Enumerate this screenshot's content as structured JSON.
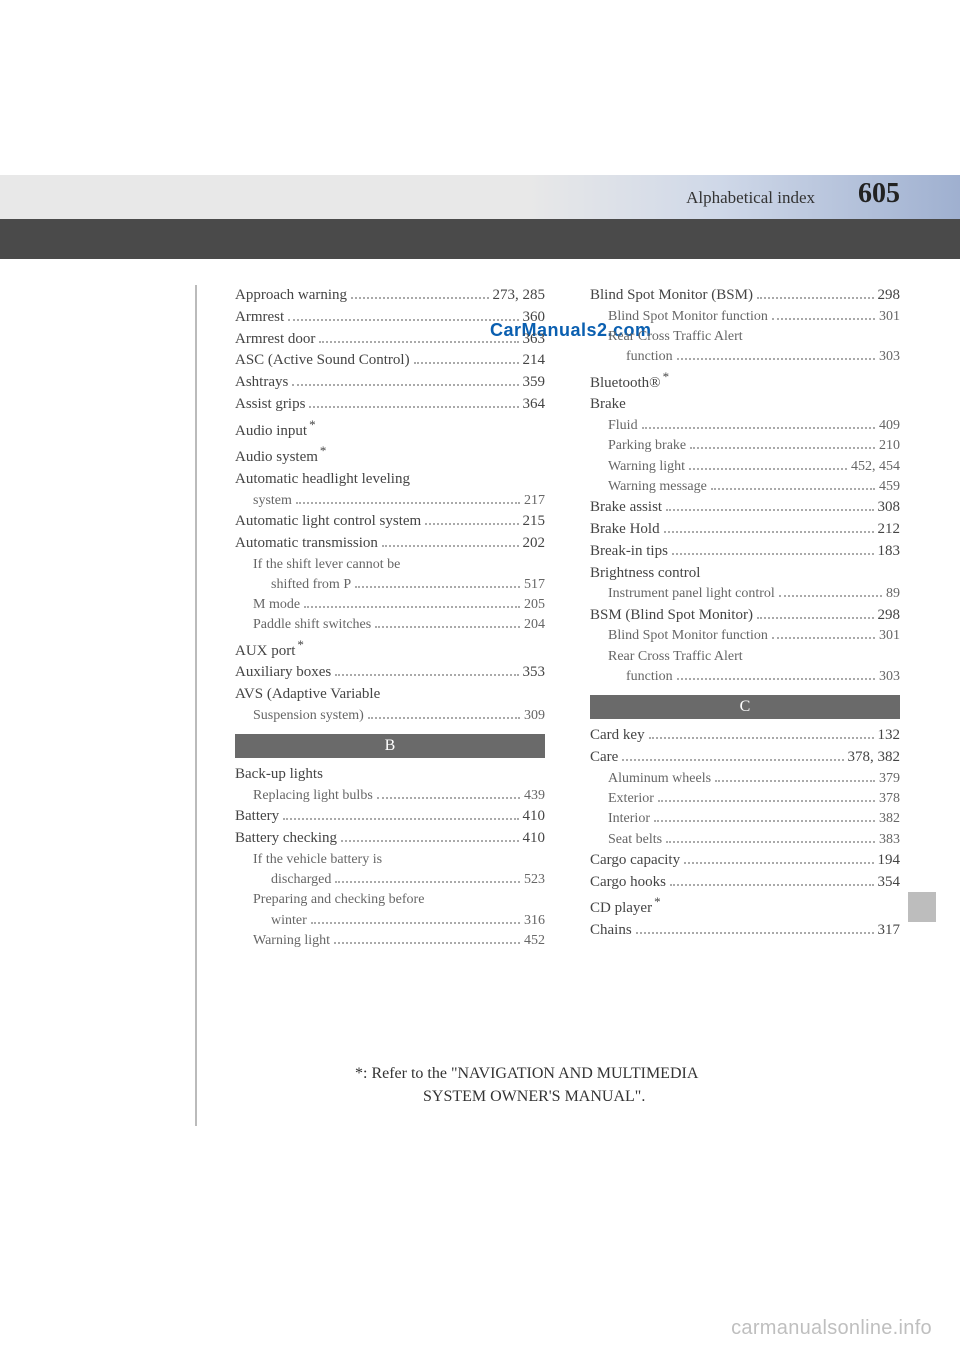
{
  "header": {
    "title": "Alphabetical index",
    "page_number": "605"
  },
  "watermark": "CarManuals2.com",
  "site_credit": "carmanualsonline.info",
  "footnote_line1": "*: Refer to the \"NAVIGATION AND MULTIMEDIA",
  "footnote_line2": "SYSTEM OWNER'S MANUAL\".",
  "col_left_a": [
    {
      "label": "Approach warning",
      "page": "273, 285",
      "level": 0
    },
    {
      "label": "Armrest",
      "page": "360",
      "level": 0
    },
    {
      "label": "Armrest door",
      "page": "363",
      "level": 0
    },
    {
      "label": "ASC (Active Sound Control)",
      "page": "214",
      "level": 0
    },
    {
      "label": "Ashtrays",
      "page": "359",
      "level": 0
    },
    {
      "label": "Assist grips",
      "page": "364",
      "level": 0
    },
    {
      "label": "Audio input",
      "page": "",
      "level": 0,
      "star": true,
      "nolead": true
    },
    {
      "label": "Audio system",
      "page": "",
      "level": 0,
      "star": true,
      "nolead": true
    },
    {
      "label": "Automatic headlight leveling",
      "page": "",
      "level": 0,
      "nolead": true
    },
    {
      "label": "system",
      "page": "217",
      "level": 1
    },
    {
      "label": "Automatic light control system",
      "page": "215",
      "level": 0
    },
    {
      "label": "Automatic transmission",
      "page": "202",
      "level": 0
    },
    {
      "label": "If the shift lever cannot be",
      "page": "",
      "level": 1,
      "nolead": true
    },
    {
      "label": "shifted from P",
      "page": "517",
      "level": 2
    },
    {
      "label": "M mode",
      "page": "205",
      "level": 1
    },
    {
      "label": "Paddle shift switches",
      "page": "204",
      "level": 1
    },
    {
      "label": "AUX port",
      "page": "",
      "level": 0,
      "star": true,
      "nolead": true
    },
    {
      "label": "Auxiliary boxes",
      "page": "353",
      "level": 0
    },
    {
      "label": "AVS (Adaptive Variable",
      "page": "",
      "level": 0,
      "nolead": true
    },
    {
      "label": "Suspension system)",
      "page": "309",
      "level": 1
    }
  ],
  "section_b_label": "B",
  "col_left_b": [
    {
      "label": "Back-up lights",
      "page": "",
      "level": 0,
      "nolead": true
    },
    {
      "label": "Replacing light bulbs",
      "page": "439",
      "level": 1
    },
    {
      "label": "Battery",
      "page": "410",
      "level": 0
    },
    {
      "label": "Battery checking",
      "page": "410",
      "level": 0
    },
    {
      "label": "If the vehicle battery is",
      "page": "",
      "level": 1,
      "nolead": true
    },
    {
      "label": "discharged",
      "page": "523",
      "level": 2
    },
    {
      "label": "Preparing and checking before",
      "page": "",
      "level": 1,
      "nolead": true
    },
    {
      "label": "winter",
      "page": "316",
      "level": 2
    },
    {
      "label": "Warning light",
      "page": "452",
      "level": 1
    }
  ],
  "col_right_top": [
    {
      "label": "Blind Spot Monitor (BSM)",
      "page": "298",
      "level": 0
    },
    {
      "label": "Blind Spot Monitor function",
      "page": "301",
      "level": 1
    },
    {
      "label": "Rear Cross Traffic Alert",
      "page": "",
      "level": 1,
      "nolead": true
    },
    {
      "label": "function",
      "page": "303",
      "level": 2
    },
    {
      "label": "Bluetooth®",
      "page": "",
      "level": 0,
      "star": true,
      "nolead": true
    },
    {
      "label": "Brake",
      "page": "",
      "level": 0,
      "nolead": true
    },
    {
      "label": "Fluid",
      "page": "409",
      "level": 1
    },
    {
      "label": "Parking brake",
      "page": "210",
      "level": 1
    },
    {
      "label": "Warning light",
      "page": "452, 454",
      "level": 1
    },
    {
      "label": "Warning message",
      "page": "459",
      "level": 1
    },
    {
      "label": "Brake assist",
      "page": "308",
      "level": 0
    },
    {
      "label": "Brake Hold",
      "page": "212",
      "level": 0
    },
    {
      "label": "Break-in tips",
      "page": "183",
      "level": 0
    },
    {
      "label": "Brightness control",
      "page": "",
      "level": 0,
      "nolead": true
    },
    {
      "label": "Instrument panel light control",
      "page": "89",
      "level": 1
    },
    {
      "label": "BSM (Blind Spot Monitor)",
      "page": "298",
      "level": 0
    },
    {
      "label": "Blind Spot Monitor function",
      "page": "301",
      "level": 1
    },
    {
      "label": "Rear Cross Traffic Alert",
      "page": "",
      "level": 1,
      "nolead": true
    },
    {
      "label": "function",
      "page": "303",
      "level": 2
    }
  ],
  "section_c_label": "C",
  "col_right_c": [
    {
      "label": "Card key",
      "page": "132",
      "level": 0
    },
    {
      "label": "Care",
      "page": "378, 382",
      "level": 0
    },
    {
      "label": "Aluminum wheels",
      "page": "379",
      "level": 1
    },
    {
      "label": "Exterior",
      "page": "378",
      "level": 1
    },
    {
      "label": "Interior",
      "page": "382",
      "level": 1
    },
    {
      "label": "Seat belts",
      "page": "383",
      "level": 1
    },
    {
      "label": "Cargo capacity",
      "page": "194",
      "level": 0
    },
    {
      "label": "Cargo hooks",
      "page": "354",
      "level": 0
    },
    {
      "label": "CD player",
      "page": "",
      "level": 0,
      "star": true,
      "nolead": true
    },
    {
      "label": "Chains",
      "page": "317",
      "level": 0
    }
  ]
}
